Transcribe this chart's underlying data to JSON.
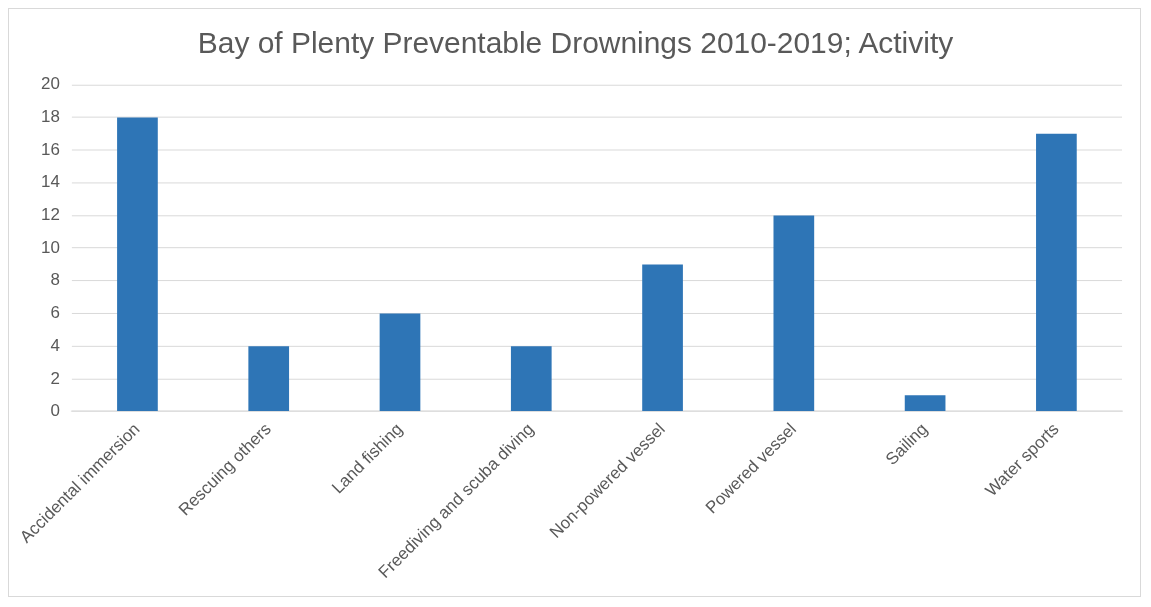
{
  "chart_data": {
    "type": "bar",
    "title": "Bay of Plenty Preventable Drownings 2010-2019; Activity",
    "categories": [
      "Accidental immersion",
      "Rescuing others",
      "Land fishing",
      "Freediving and scuba diving",
      "Non-powered vessel",
      "Powered vessel",
      "Sailing",
      "Water sports"
    ],
    "values": [
      18,
      4,
      6,
      4,
      9,
      12,
      1,
      17
    ],
    "color": "#2e75b6",
    "ylim": [
      0,
      20
    ],
    "yticks": [
      0,
      2,
      4,
      6,
      8,
      10,
      12,
      14,
      16,
      18,
      20
    ],
    "grid": "y",
    "legend": false
  }
}
